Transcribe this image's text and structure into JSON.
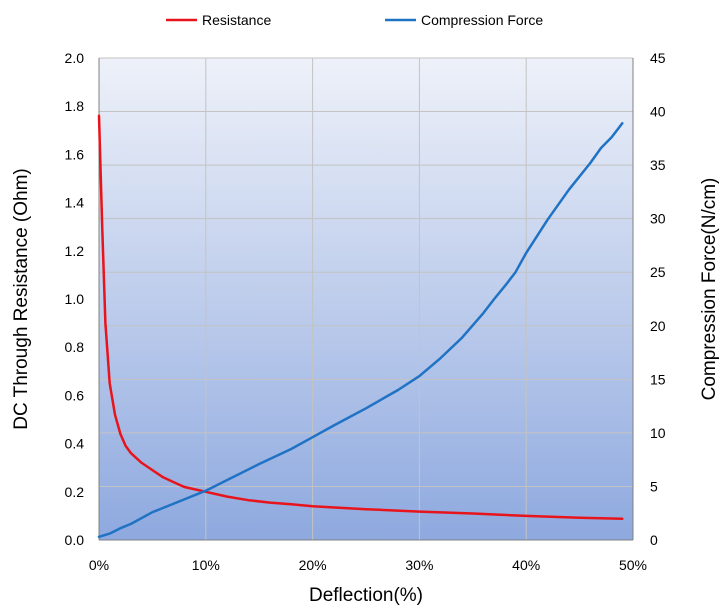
{
  "chart_data": {
    "type": "line",
    "xlabel": "Deflection(%)",
    "ylabel_left": "DC Through Resistance (Ohm)",
    "ylabel_right": "Compression Force(N/cm)",
    "xlim": [
      0,
      50
    ],
    "ylim_left": [
      0,
      2.0
    ],
    "ylim_right": [
      0,
      45
    ],
    "x_ticks": [
      "0%",
      "10%",
      "20%",
      "30%",
      "40%",
      "50%"
    ],
    "y_left_ticks": [
      "0.0",
      "0.2",
      "0.4",
      "0.6",
      "0.8",
      "1.0",
      "1.2",
      "1.4",
      "1.6",
      "1.8",
      "2.0"
    ],
    "y_right_ticks": [
      "0",
      "5",
      "10",
      "15",
      "20",
      "25",
      "30",
      "35",
      "40",
      "45"
    ],
    "grid": true,
    "legend_position": "top",
    "series": [
      {
        "name": "Resistance",
        "axis": "left",
        "color": "#e8141b",
        "x": [
          0,
          0.3,
          0.6,
          1.0,
          1.5,
          2.0,
          2.5,
          3.0,
          4.0,
          5.0,
          6.0,
          7.0,
          8.0,
          9.0,
          10,
          12,
          14,
          16,
          18,
          20,
          25,
          30,
          35,
          40,
          45,
          49
        ],
        "y": [
          1.76,
          1.3,
          0.9,
          0.65,
          0.52,
          0.44,
          0.39,
          0.36,
          0.32,
          0.29,
          0.26,
          0.24,
          0.22,
          0.21,
          0.2,
          0.18,
          0.165,
          0.155,
          0.148,
          0.14,
          0.128,
          0.118,
          0.11,
          0.1,
          0.092,
          0.088
        ]
      },
      {
        "name": "Compression Force",
        "axis": "right",
        "color": "#1f72c4",
        "x": [
          0,
          1,
          2,
          3,
          5,
          7,
          10,
          12,
          15,
          18,
          20,
          22,
          25,
          28,
          30,
          32,
          34,
          36,
          37,
          38,
          39,
          40,
          42,
          44,
          46,
          47,
          48,
          49
        ],
        "y": [
          0.3,
          0.6,
          1.1,
          1.5,
          2.6,
          3.4,
          4.6,
          5.6,
          7.1,
          8.5,
          9.6,
          10.7,
          12.3,
          14.0,
          15.3,
          17.0,
          18.9,
          21.2,
          22.5,
          23.7,
          25.0,
          26.8,
          29.9,
          32.7,
          35.2,
          36.6,
          37.6,
          38.9
        ]
      }
    ]
  }
}
